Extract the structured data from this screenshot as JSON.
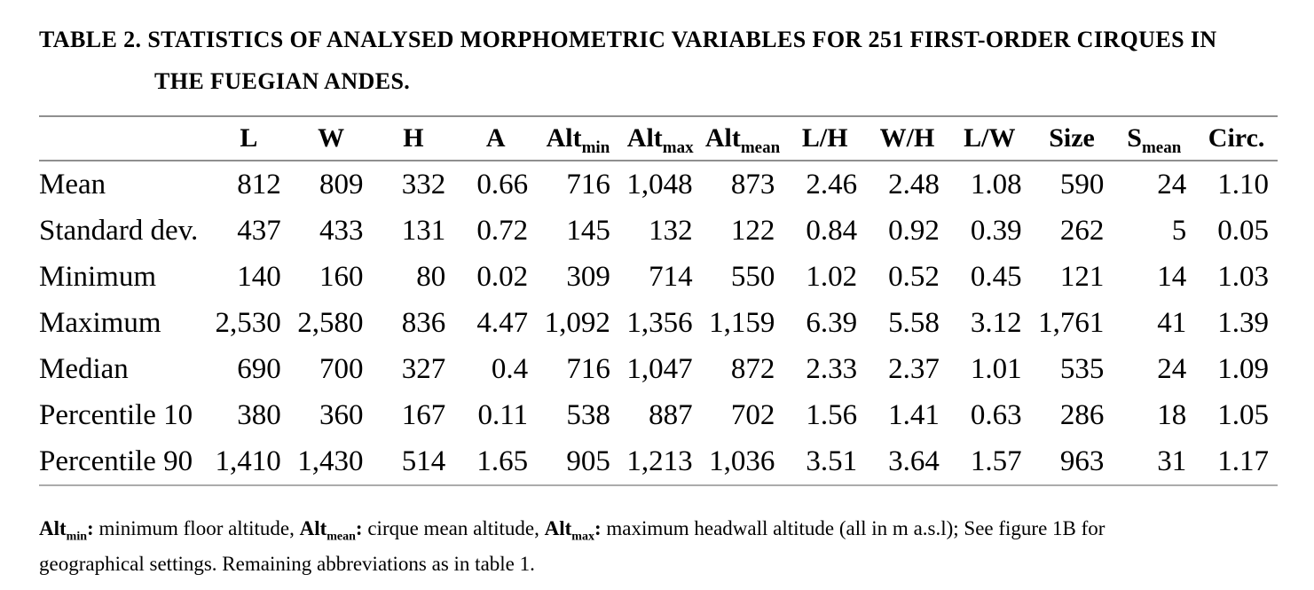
{
  "title": {
    "line1": "TABLE 2. STATISTICS OF ANALYSED MORPHOMETRIC VARIABLES FOR 251 FIRST-ORDER CIRQUES IN",
    "line2": "THE FUEGIAN ANDES."
  },
  "table": {
    "columns": [
      {
        "base": "L",
        "sub": ""
      },
      {
        "base": "W",
        "sub": ""
      },
      {
        "base": "H",
        "sub": ""
      },
      {
        "base": "A",
        "sub": ""
      },
      {
        "base": "Alt",
        "sub": "min"
      },
      {
        "base": "Alt",
        "sub": "max"
      },
      {
        "base": "Alt",
        "sub": "mean"
      },
      {
        "base": "L/H",
        "sub": ""
      },
      {
        "base": "W/H",
        "sub": ""
      },
      {
        "base": "L/W",
        "sub": ""
      },
      {
        "base": "Size",
        "sub": ""
      },
      {
        "base": "S",
        "sub": "mean"
      },
      {
        "base": "Circ.",
        "sub": ""
      }
    ],
    "rows": [
      {
        "label": "Mean",
        "values": [
          "812",
          "809",
          "332",
          "0.66",
          "716",
          "1,048",
          "873",
          "2.46",
          "2.48",
          "1.08",
          "590",
          "24",
          "1.10"
        ]
      },
      {
        "label": "Standard dev.",
        "values": [
          "437",
          "433",
          "131",
          "0.72",
          "145",
          "132",
          "122",
          "0.84",
          "0.92",
          "0.39",
          "262",
          "5",
          "0.05"
        ]
      },
      {
        "label": "Minimum",
        "values": [
          "140",
          "160",
          "80",
          "0.02",
          "309",
          "714",
          "550",
          "1.02",
          "0.52",
          "0.45",
          "121",
          "14",
          "1.03"
        ]
      },
      {
        "label": "Maximum",
        "values": [
          "2,530",
          "2,580",
          "836",
          "4.47",
          "1,092",
          "1,356",
          "1,159",
          "6.39",
          "5.58",
          "3.12",
          "1,761",
          "41",
          "1.39"
        ]
      },
      {
        "label": "Median",
        "values": [
          "690",
          "700",
          "327",
          "0.4",
          "716",
          "1,047",
          "872",
          "2.33",
          "2.37",
          "1.01",
          "535",
          "24",
          "1.09"
        ]
      },
      {
        "label": "Percentile 10",
        "values": [
          "380",
          "360",
          "167",
          "0.11",
          "538",
          "887",
          "702",
          "1.56",
          "1.41",
          "0.63",
          "286",
          "18",
          "1.05"
        ]
      },
      {
        "label": "Percentile 90",
        "values": [
          "1,410",
          "1,430",
          "514",
          "1.65",
          "905",
          "1,213",
          "1,036",
          "3.51",
          "3.64",
          "1.57",
          "963",
          "31",
          "1.17"
        ]
      }
    ]
  },
  "footnote": {
    "segments": [
      {
        "text": "Alt",
        "bold": true,
        "sub": false,
        "break": false
      },
      {
        "text": "min",
        "bold": true,
        "sub": true,
        "break": false
      },
      {
        "text": ": ",
        "bold": true,
        "sub": false,
        "break": false
      },
      {
        "text": "minimum floor altitude, ",
        "bold": false,
        "sub": false,
        "break": false
      },
      {
        "text": "Alt",
        "bold": true,
        "sub": false,
        "break": false
      },
      {
        "text": "mean",
        "bold": true,
        "sub": true,
        "break": false
      },
      {
        "text": ": ",
        "bold": true,
        "sub": false,
        "break": false
      },
      {
        "text": "cirque mean altitude, ",
        "bold": false,
        "sub": false,
        "break": false
      },
      {
        "text": "Alt",
        "bold": true,
        "sub": false,
        "break": false
      },
      {
        "text": "max",
        "bold": true,
        "sub": true,
        "break": false
      },
      {
        "text": ": ",
        "bold": true,
        "sub": false,
        "break": false
      },
      {
        "text": "maximum headwall altitude (all in m a.s.l); See figure 1B for",
        "bold": false,
        "sub": false,
        "break": false
      },
      {
        "text": "geographical settings. Remaining abbreviations as in table 1.",
        "bold": false,
        "sub": false,
        "break": true
      }
    ]
  }
}
